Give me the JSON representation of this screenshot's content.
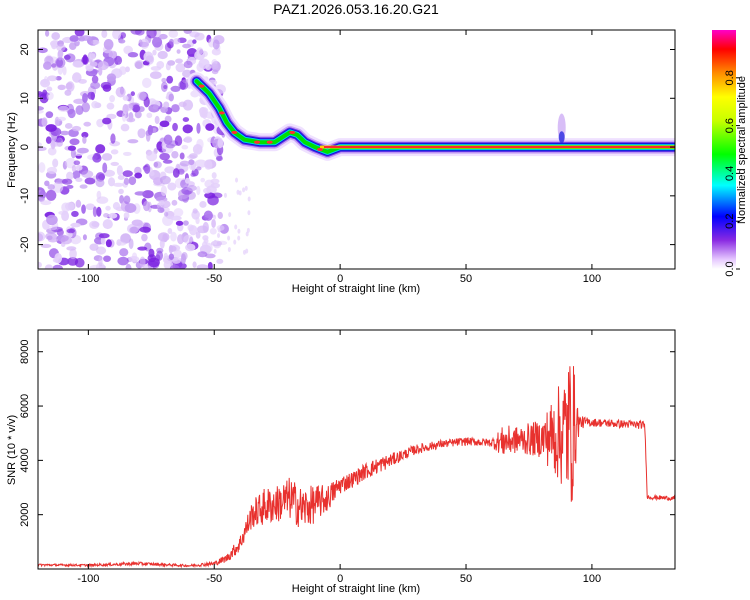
{
  "title": "PAZ1.2026.053.16.20.G21",
  "chart_data": [
    {
      "type": "heatmap",
      "xlabel": "Height of straight line (km)",
      "ylabel": "Frequency (Hz)",
      "xlim": [
        -120,
        133
      ],
      "ylim": [
        -25,
        24
      ],
      "x_ticks": [
        -100,
        -50,
        0,
        50,
        100
      ],
      "y_ticks": [
        -20,
        -10,
        0,
        10,
        20
      ],
      "colorbar": {
        "label": "Normalized spectral amplitude",
        "range": [
          0,
          1
        ],
        "ticks": [
          0.0,
          0.2,
          0.4,
          0.6,
          0.8
        ],
        "tick_labels": [
          "0.0",
          "0.2",
          "0.4",
          "0.6",
          "0.8"
        ]
      },
      "noise_region": {
        "x_range": [
          -120,
          -50
        ],
        "y_range": [
          -25,
          24
        ]
      },
      "ridge": [
        {
          "x": -57,
          "f": 13.5
        },
        {
          "x": -52,
          "f": 11
        },
        {
          "x": -48,
          "f": 8
        },
        {
          "x": -45,
          "f": 5
        },
        {
          "x": -42,
          "f": 3
        },
        {
          "x": -38,
          "f": 1.5
        },
        {
          "x": -32,
          "f": 1
        },
        {
          "x": -26,
          "f": 1
        },
        {
          "x": -23,
          "f": 2
        },
        {
          "x": -20,
          "f": 3
        },
        {
          "x": -17,
          "f": 2.5
        },
        {
          "x": -14,
          "f": 1
        },
        {
          "x": -10,
          "f": 0
        },
        {
          "x": -5,
          "f": -1
        },
        {
          "x": 0,
          "f": 0
        },
        {
          "x": 20,
          "f": 0
        },
        {
          "x": 60,
          "f": 0
        },
        {
          "x": 90,
          "f": 0
        },
        {
          "x": 133,
          "f": 0
        }
      ]
    },
    {
      "type": "line",
      "xlabel": "Height of straight line (km)",
      "ylabel": "SNR (10 * v/v)",
      "xlim": [
        -120,
        133
      ],
      "ylim": [
        0,
        8800
      ],
      "x_ticks": [
        -100,
        -50,
        0,
        50,
        100
      ],
      "y_ticks": [
        2000,
        4000,
        6000,
        8000
      ],
      "series": [
        {
          "name": "SNR",
          "color": "#e8312e",
          "x": [
            -120,
            -100,
            -80,
            -60,
            -50,
            -45,
            -40,
            -35,
            -30,
            -25,
            -20,
            -15,
            -10,
            -5,
            0,
            5,
            10,
            15,
            20,
            25,
            30,
            40,
            50,
            60,
            65,
            70,
            80,
            88,
            92,
            95,
            100,
            110,
            121,
            122,
            133
          ],
          "values": [
            150,
            140,
            200,
            120,
            200,
            400,
            900,
            2000,
            2300,
            2400,
            2600,
            2200,
            2400,
            2600,
            3100,
            3300,
            3600,
            3800,
            4000,
            4200,
            4400,
            4600,
            4700,
            4650,
            4700,
            4750,
            4800,
            5000,
            5200,
            5400,
            5400,
            5350,
            5300,
            2650,
            2600
          ],
          "noise_amp": [
            40,
            40,
            60,
            40,
            80,
            150,
            300,
            500,
            700,
            700,
            800,
            800,
            700,
            500,
            350,
            300,
            300,
            300,
            250,
            200,
            180,
            150,
            150,
            150,
            600,
            500,
            700,
            2000,
            3000,
            250,
            150,
            150,
            150,
            80,
            80
          ]
        }
      ]
    }
  ]
}
